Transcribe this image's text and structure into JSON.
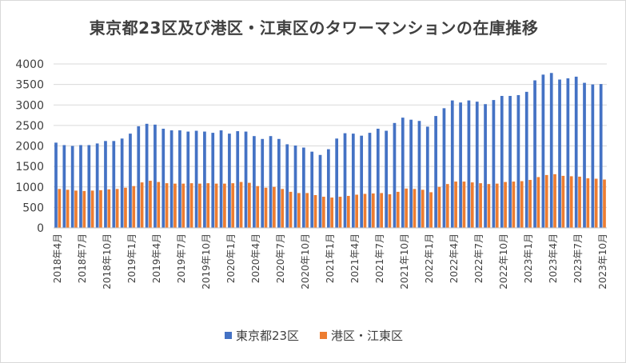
{
  "chart_data": {
    "type": "bar",
    "title": "東京都23区及び港区・江東区のタワーマンションの在庫推移",
    "xlabel": "",
    "ylabel": "",
    "ylim": [
      0,
      4000
    ],
    "yticks": [
      0,
      500,
      1000,
      1500,
      2000,
      2500,
      3000,
      3500,
      4000
    ],
    "grid": true,
    "legend_position": "bottom",
    "tick_labels": [
      "2018年4月",
      "2018年7月",
      "2018年10月",
      "2019年1月",
      "2019年4月",
      "2019年7月",
      "2019年10月",
      "2020年1月",
      "2020年4月",
      "2020年7月",
      "2020年10月",
      "2021年1月",
      "2021年4月",
      "2021年7月",
      "2021年10月",
      "2022年1月",
      "2022年4月",
      "2022年7月",
      "2022年10月",
      "2023年1月",
      "2023年4月",
      "2023年7月",
      "2023年10月"
    ],
    "categories": [
      "2018-04",
      "2018-05",
      "2018-06",
      "2018-07",
      "2018-08",
      "2018-09",
      "2018-10",
      "2018-11",
      "2018-12",
      "2019-01",
      "2019-02",
      "2019-03",
      "2019-04",
      "2019-05",
      "2019-06",
      "2019-07",
      "2019-08",
      "2019-09",
      "2019-10",
      "2019-11",
      "2019-12",
      "2020-01",
      "2020-02",
      "2020-03",
      "2020-04",
      "2020-05",
      "2020-06",
      "2020-07",
      "2020-08",
      "2020-09",
      "2020-10",
      "2020-11",
      "2020-12",
      "2021-01",
      "2021-02",
      "2021-03",
      "2021-04",
      "2021-05",
      "2021-06",
      "2021-07",
      "2021-08",
      "2021-09",
      "2021-10",
      "2021-11",
      "2021-12",
      "2022-01",
      "2022-02",
      "2022-03",
      "2022-04",
      "2022-05",
      "2022-06",
      "2022-07",
      "2022-08",
      "2022-09",
      "2022-10",
      "2022-11",
      "2022-12",
      "2023-01",
      "2023-02",
      "2023-03",
      "2023-04",
      "2023-05",
      "2023-06",
      "2023-07",
      "2023-08",
      "2023-09",
      "2023-10"
    ],
    "series": [
      {
        "name": "東京都23区",
        "color": "#4472c4",
        "values": [
          2080,
          2020,
          2000,
          2020,
          2020,
          2060,
          2120,
          2120,
          2180,
          2300,
          2480,
          2540,
          2520,
          2420,
          2380,
          2380,
          2350,
          2370,
          2350,
          2320,
          2380,
          2300,
          2360,
          2350,
          2240,
          2170,
          2240,
          2170,
          2040,
          2010,
          1960,
          1860,
          1780,
          1920,
          2180,
          2310,
          2300,
          2250,
          2320,
          2420,
          2370,
          2560,
          2690,
          2640,
          2610,
          2470,
          2730,
          2920,
          3110,
          3060,
          3110,
          3080,
          3020,
          3120,
          3220,
          3220,
          3240,
          3320,
          3600,
          3740,
          3780,
          3620,
          3650,
          3690,
          3540,
          3500,
          3510
        ]
      },
      {
        "name": "港区・江東区",
        "color": "#ed7d31",
        "values": [
          950,
          930,
          910,
          900,
          910,
          920,
          940,
          950,
          980,
          1020,
          1110,
          1150,
          1120,
          1090,
          1080,
          1080,
          1090,
          1080,
          1090,
          1080,
          1080,
          1090,
          1120,
          1100,
          1020,
          980,
          1000,
          950,
          880,
          850,
          850,
          800,
          760,
          740,
          760,
          780,
          810,
          830,
          840,
          850,
          820,
          880,
          960,
          950,
          930,
          870,
          1000,
          1070,
          1130,
          1130,
          1110,
          1090,
          1070,
          1080,
          1120,
          1130,
          1140,
          1170,
          1240,
          1290,
          1310,
          1270,
          1260,
          1250,
          1210,
          1200,
          1180
        ]
      }
    ]
  }
}
